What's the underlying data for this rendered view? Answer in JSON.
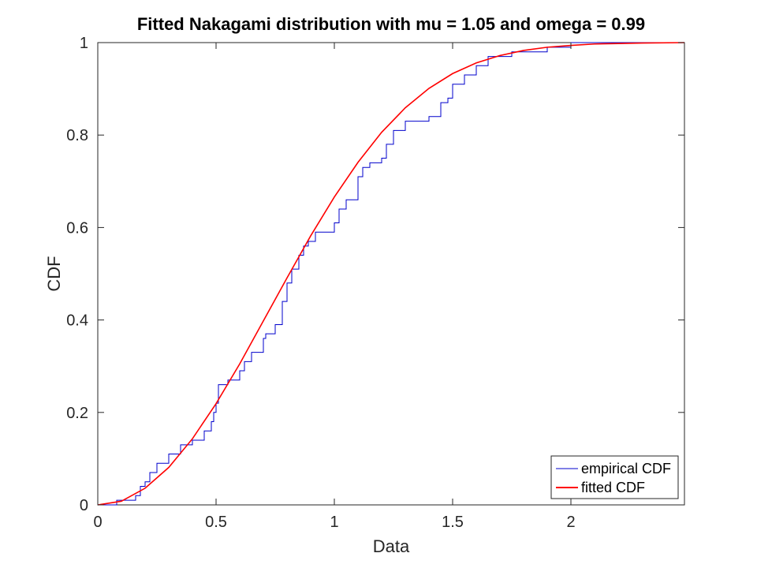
{
  "chart_data": {
    "type": "line",
    "title": "Fitted Nakagami distribution with mu = 1.05 and omega = 0.99",
    "xlabel": "Data",
    "ylabel": "CDF",
    "xlim": [
      0,
      2.48
    ],
    "ylim": [
      0,
      1
    ],
    "x_ticks": [
      0,
      0.5,
      1,
      1.5,
      2
    ],
    "x_tick_labels": [
      "0",
      "0.5",
      "1",
      "1.5",
      "2"
    ],
    "y_ticks": [
      0,
      0.2,
      0.4,
      0.6,
      0.8,
      1
    ],
    "y_tick_labels": [
      "0",
      "0.2",
      "0.4",
      "0.6",
      "0.8",
      "1"
    ],
    "grid": false,
    "legend_position": "bottom-right",
    "series": [
      {
        "name": "empirical CDF",
        "color": "#0000cc",
        "style": "step",
        "x": [
          0,
          0.08,
          0.13,
          0.16,
          0.18,
          0.2,
          0.22,
          0.25,
          0.3,
          0.35,
          0.4,
          0.45,
          0.48,
          0.49,
          0.5,
          0.51,
          0.52,
          0.55,
          0.6,
          0.62,
          0.65,
          0.7,
          0.71,
          0.73,
          0.75,
          0.78,
          0.8,
          0.82,
          0.85,
          0.87,
          0.89,
          0.92,
          1.0,
          1.02,
          1.05,
          1.1,
          1.12,
          1.15,
          1.2,
          1.22,
          1.25,
          1.3,
          1.35,
          1.4,
          1.45,
          1.48,
          1.5,
          1.55,
          1.6,
          1.65,
          1.75,
          1.9,
          2.0,
          2.48
        ],
        "y": [
          0,
          0.01,
          0.01,
          0.02,
          0.04,
          0.05,
          0.07,
          0.09,
          0.11,
          0.13,
          0.14,
          0.16,
          0.18,
          0.2,
          0.22,
          0.26,
          0.26,
          0.27,
          0.29,
          0.31,
          0.33,
          0.36,
          0.37,
          0.37,
          0.39,
          0.44,
          0.48,
          0.51,
          0.54,
          0.56,
          0.57,
          0.59,
          0.61,
          0.64,
          0.66,
          0.71,
          0.73,
          0.74,
          0.75,
          0.78,
          0.81,
          0.83,
          0.83,
          0.84,
          0.87,
          0.88,
          0.91,
          0.93,
          0.95,
          0.97,
          0.98,
          0.99,
          1,
          1
        ]
      },
      {
        "name": "fitted CDF",
        "color": "#ff0000",
        "style": "line",
        "x": [
          0,
          0.1,
          0.2,
          0.3,
          0.4,
          0.5,
          0.6,
          0.7,
          0.8,
          0.9,
          1.0,
          1.1,
          1.2,
          1.3,
          1.4,
          1.5,
          1.6,
          1.7,
          1.8,
          1.9,
          2.0,
          2.1,
          2.2,
          2.3,
          2.48
        ],
        "y": [
          0,
          0.008,
          0.036,
          0.081,
          0.143,
          0.219,
          0.305,
          0.398,
          0.491,
          0.582,
          0.666,
          0.741,
          0.806,
          0.859,
          0.901,
          0.933,
          0.956,
          0.972,
          0.983,
          0.99,
          0.994,
          0.997,
          0.998,
          0.999,
          1.0
        ]
      }
    ]
  }
}
